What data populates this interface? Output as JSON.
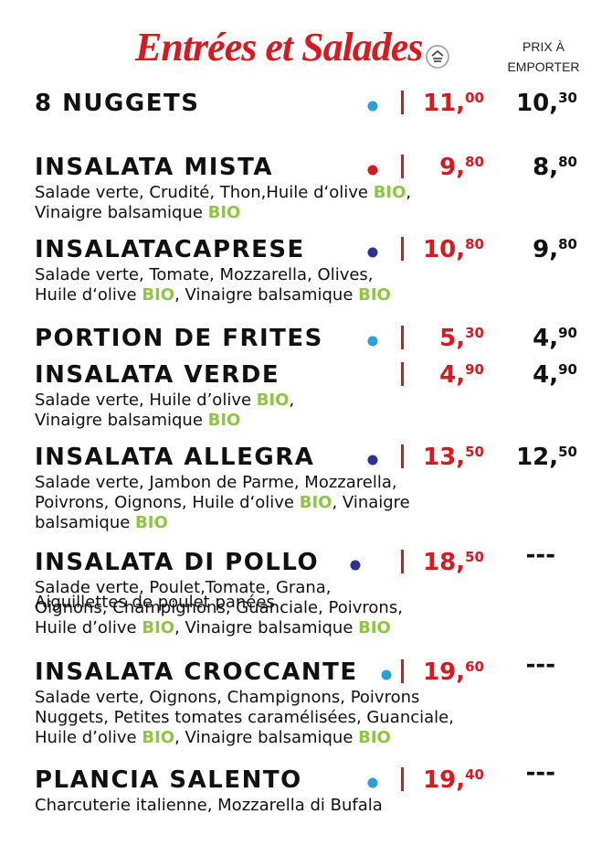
{
  "header": {
    "title": "Entrées et Salades",
    "takeaway_label": [
      "PRIX À",
      "EMPORTER"
    ]
  },
  "items": [
    {
      "name": "8 NUGGETS",
      "dot": "#2a9fd8",
      "price": {
        "main": "11,",
        "cents": "00"
      },
      "takeaway": {
        "main": "10,",
        "cents": "30"
      },
      "description": []
    },
    {
      "name": "INSALATA MISTA",
      "dot": "#d71920",
      "price": {
        "main": "9,",
        "cents": "80"
      },
      "takeaway": {
        "main": "8,",
        "cents": "80"
      },
      "description": [
        [
          "Salade verte, Crudité, Thon,Huile d‘olive ",
          {
            "text": "BIO",
            "color": "#8dc63f"
          },
          ","
        ],
        [
          "Vinaigre balsamique ",
          {
            "text": "BIO",
            "color": "#8dc63f"
          }
        ]
      ]
    },
    {
      "name": "INSALATACAPRESE",
      "dot": "#2e3192",
      "price": {
        "main": "10,",
        "cents": "80"
      },
      "takeaway": {
        "main": "9,",
        "cents": "80"
      },
      "description": [
        [
          "Salade verte, Tomate, Mozzarella, Olives,"
        ],
        [
          "Huile d‘olive ",
          {
            "text": "BIO",
            "color": "#8dc63f"
          },
          ", Vinaigre balsamique ",
          {
            "text": "BIO",
            "color": "#8dc63f"
          }
        ]
      ]
    },
    {
      "name": "PORTION DE FRITES",
      "dot": "#2a9fd8",
      "price": {
        "main": "5,",
        "cents": "30"
      },
      "takeaway": {
        "main": "4,",
        "cents": "90"
      },
      "description": []
    },
    {
      "name": "INSALATA VERDE",
      "price": {
        "main": "4,",
        "cents": "90"
      },
      "takeaway": {
        "main": "4,",
        "cents": "90"
      },
      "description": [
        [
          "Salade verte, Huile d’olive ",
          {
            "text": "BIO",
            "color": "#8dc63f"
          },
          ","
        ],
        [
          "Vinaigre balsamique ",
          {
            "text": "BIO",
            "color": "#8dc63f"
          }
        ]
      ]
    },
    {
      "name": "INSALATA ALLEGRA",
      "dot": "#2e3192",
      "price": {
        "main": "13,",
        "cents": "50"
      },
      "takeaway": {
        "main": "12,",
        "cents": "50"
      },
      "description": [
        [
          "Salade verte, Jambon de Parme, Mozzarella,"
        ],
        [
          "Poivrons, Oignons, Huile d‘olive ",
          {
            "text": "BIO",
            "color": "#8dc63f"
          },
          ", Vinaigre"
        ],
        [
          "balsamique ",
          {
            "text": "BIO",
            "color": "#8dc63f"
          }
        ]
      ]
    },
    {
      "name": "INSALATA DI POLLO",
      "dot": "#2e3192",
      "price": {
        "main": "18,",
        "cents": "50"
      },
      "takeaway": "---",
      "overlay": "Aiguillettes de poulet panées",
      "description": [
        [
          "Salade verte, Poulet,Tomate, Grana,"
        ],
        [
          "Oignons, Champignons, Guanciale, Poivrons,"
        ],
        [
          "Huile d’olive ",
          {
            "text": "BIO",
            "color": "#8dc63f"
          },
          ", Vinaigre balsamique ",
          {
            "text": "BIO",
            "color": "#8dc63f"
          }
        ]
      ]
    },
    {
      "name": "INSALATA CROCCANTE",
      "dot": "#2a9fd8",
      "price": {
        "main": "19,",
        "cents": "60"
      },
      "takeaway": "---",
      "description": [
        [
          "Salade verte, Oignons, Champignons, Poivrons"
        ],
        [
          "Nuggets, Petites tomates caramélisées, Guanciale,"
        ],
        [
          "Huile d’olive ",
          {
            "text": "BIO",
            "color": "#8dc63f"
          },
          ", Vinaigre balsamique ",
          {
            "text": "BIO",
            "color": "#8dc63f"
          }
        ]
      ]
    },
    {
      "name": "PLANCIA SALENTO",
      "dot": "#2a9fd8",
      "price": {
        "main": "19,",
        "cents": "40"
      },
      "takeaway": "---",
      "description": [
        [
          "Charcuterie italienne, Mozzarella di Bufala"
        ]
      ]
    }
  ]
}
